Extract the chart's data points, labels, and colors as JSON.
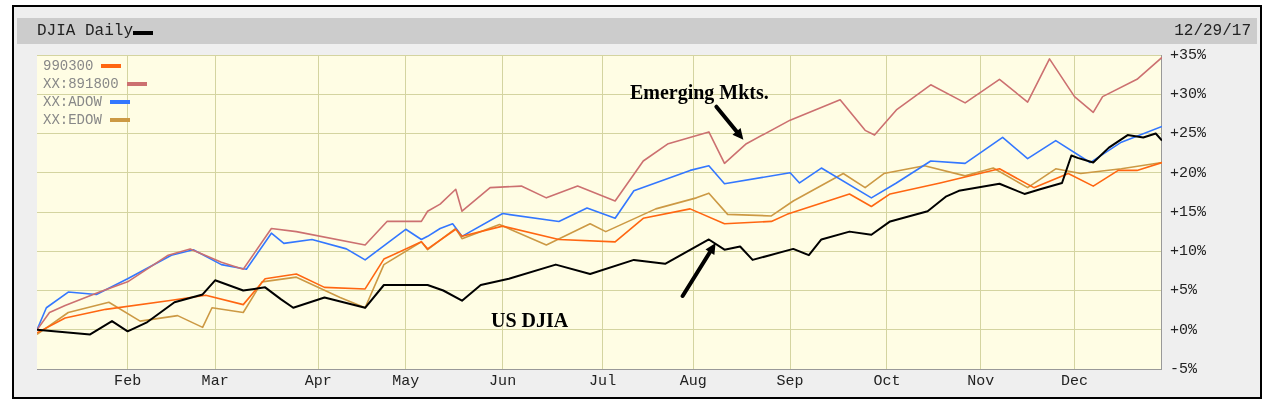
{
  "chart_data": {
    "type": "line",
    "subtitle": "12/29/17",
    "xlim": [
      "--01-03",
      "--12-29"
    ],
    "xticks": [
      {
        "value": "--02-01",
        "label": "Feb"
      },
      {
        "value": "--03-01",
        "label": "Mar"
      },
      {
        "value": "--04-03",
        "label": "Apr"
      },
      {
        "value": "--05-01",
        "label": "May"
      },
      {
        "value": "--06-01",
        "label": "Jun"
      },
      {
        "value": "--07-03",
        "label": "Jul"
      },
      {
        "value": "--08-01",
        "label": "Aug"
      },
      {
        "value": "--09-01",
        "label": "Sep"
      },
      {
        "value": "--10-02",
        "label": "Oct"
      },
      {
        "value": "--11-01",
        "label": "Nov"
      },
      {
        "value": "--12-01",
        "label": "Dec"
      }
    ],
    "ylim": [
      -5,
      35
    ],
    "yticks": [
      {
        "value": -5,
        "label": "-5%"
      },
      {
        "value": 0,
        "label": "+0%"
      },
      {
        "value": 5,
        "label": "+5%"
      },
      {
        "value": 10,
        "label": "+10%"
      },
      {
        "value": 15,
        "label": "+15%"
      },
      {
        "value": 20,
        "label": "+20%"
      },
      {
        "value": 25,
        "label": "+25%"
      },
      {
        "value": 30,
        "label": "+30%"
      },
      {
        "value": 35,
        "label": "+35%"
      }
    ],
    "grid": true,
    "legend": "top left",
    "annotations": [
      {
        "text": "Emerging Mkts.",
        "x": "--08-18",
        "y": 23.7
      },
      "US DJIA"
    ],
    "series": [
      {
        "name": "DJIA Daily",
        "color": "#000000",
        "x": [
          "--01-03",
          "--01-20",
          "--01-27",
          "--02-01",
          "--02-07",
          "--02-16",
          "--02-25",
          "--03-01",
          "--03-10",
          "--03-17",
          "--03-22",
          "--03-26",
          "--04-05",
          "--04-18",
          "--04-24",
          "--05-08",
          "--05-13",
          "--05-19",
          "--05-25",
          "--06-03",
          "--06-18",
          "--06-29",
          "--07-13",
          "--07-23",
          "--08-06",
          "--08-11",
          "--08-16",
          "--08-20",
          "--09-02",
          "--09-07",
          "--09-11",
          "--09-20",
          "--09-27",
          "--10-03",
          "--10-15",
          "--10-21",
          "--10-25",
          "--11-07",
          "--11-15",
          "--11-20",
          "--11-27",
          "--11-30",
          "--12-02",
          "--12-07",
          "--12-12",
          "--12-18",
          "--12-23",
          "--12-27",
          "--12-29"
        ],
        "values": [
          0,
          -0.6,
          1.1,
          -0.2,
          0.9,
          3.5,
          4.5,
          6.3,
          5.0,
          5.4,
          3.9,
          2.8,
          4.1,
          2.8,
          5.7,
          5.7,
          5.0,
          3.7,
          5.7,
          6.5,
          8.3,
          7.1,
          8.9,
          8.4,
          11.5,
          10.2,
          10.6,
          8.9,
          10.3,
          9.5,
          11.5,
          12.5,
          12.1,
          13.8,
          15.1,
          17.0,
          17.7,
          18.6,
          17.3,
          17.9,
          18.7,
          22.2,
          21.9,
          21.3,
          23.2,
          24.8,
          24.5,
          25.0,
          24.1
        ]
      },
      {
        "name": "990300",
        "color": "#ff6611",
        "x": [
          "--01-03",
          "--01-12",
          "--01-25",
          "--02-14",
          "--02-26",
          "--03-10",
          "--03-17",
          "--03-27",
          "--04-05",
          "--04-18",
          "--04-24",
          "--05-06",
          "--05-08",
          "--05-17",
          "--05-19",
          "--06-01",
          "--06-19",
          "--07-07",
          "--07-16",
          "--07-31",
          "--08-11",
          "--08-26",
          "--08-31",
          "--09-20",
          "--09-27",
          "--10-03",
          "--10-19",
          "--11-07",
          "--11-18",
          "--11-29",
          "--12-07",
          "--12-15",
          "--12-21",
          "--12-29"
        ],
        "values": [
          -0.4,
          1.5,
          2.6,
          3.7,
          4.4,
          3.2,
          6.5,
          7.1,
          5.4,
          5.2,
          9.0,
          11.2,
          10.3,
          12.8,
          11.9,
          13.2,
          11.5,
          11.2,
          14.2,
          15.4,
          13.5,
          13.8,
          14.7,
          17.3,
          15.7,
          17.3,
          18.7,
          20.5,
          18.1,
          19.9,
          18.3,
          20.3,
          20.3,
          21.3
        ]
      },
      {
        "name": "XX:891800",
        "color": "#cc7070",
        "x": [
          "--01-03",
          "--01-07",
          "--01-12",
          "--01-23",
          "--02-01",
          "--02-14",
          "--02-21",
          "--03-03",
          "--03-10",
          "--03-19",
          "--03-27",
          "--04-18",
          "--04-25",
          "--05-06",
          "--05-08",
          "--05-12",
          "--05-17",
          "--05-19",
          "--05-28",
          "--06-07",
          "--06-15",
          "--06-25",
          "--07-07",
          "--07-16",
          "--07-24",
          "--08-06",
          "--08-11",
          "--08-18",
          "--09-01",
          "--09-17",
          "--09-25",
          "--09-28",
          "--10-05",
          "--10-16",
          "--10-27",
          "--11-07",
          "--11-16",
          "--11-23",
          "--12-01",
          "--12-07",
          "--12-10",
          "--12-21",
          "--12-29"
        ],
        "values": [
          0,
          2.2,
          3.1,
          4.8,
          6.1,
          9.5,
          10.3,
          8.6,
          7.7,
          12.9,
          12.5,
          10.8,
          13.8,
          13.8,
          15.1,
          16.0,
          17.9,
          15.1,
          18.1,
          18.3,
          16.8,
          18.3,
          16.4,
          21.5,
          23.7,
          25.2,
          21.2,
          23.7,
          26.7,
          29.3,
          25.4,
          24.8,
          28.0,
          31.2,
          28.9,
          31.9,
          29.0,
          34.5,
          29.7,
          27.7,
          29.7,
          31.9,
          34.7
        ]
      },
      {
        "name": "XX:ADOW",
        "color": "#3377ff",
        "x": [
          "--01-03",
          "--01-06",
          "--01-13",
          "--01-22",
          "--02-01",
          "--02-15",
          "--02-22",
          "--03-03",
          "--03-11",
          "--03-19",
          "--03-23",
          "--04-01",
          "--04-12",
          "--04-18",
          "--05-01",
          "--05-06",
          "--05-08",
          "--05-12",
          "--05-16",
          "--05-19",
          "--06-01",
          "--06-19",
          "--06-28",
          "--07-07",
          "--07-13",
          "--07-31",
          "--08-06",
          "--08-11",
          "--09-01",
          "--09-04",
          "--09-11",
          "--09-27",
          "--10-05",
          "--10-16",
          "--10-27",
          "--11-08",
          "--11-16",
          "--11-25",
          "--12-06",
          "--12-16",
          "--12-29"
        ],
        "values": [
          0,
          2.8,
          4.8,
          4.5,
          6.5,
          9.5,
          10.2,
          8.3,
          7.7,
          12.3,
          11.0,
          11.5,
          10.3,
          8.9,
          12.8,
          11.5,
          11.9,
          12.9,
          13.5,
          11.9,
          14.8,
          13.8,
          15.5,
          14.2,
          17.7,
          20.3,
          20.9,
          18.6,
          20.0,
          18.7,
          20.6,
          16.8,
          18.7,
          21.5,
          21.2,
          24.5,
          21.8,
          24.1,
          21.3,
          23.9,
          25.9
        ]
      },
      {
        "name": "XX:EDOW",
        "color": "#cc9944",
        "x": [
          "--01-03",
          "--01-13",
          "--01-26",
          "--02-05",
          "--02-17",
          "--02-25",
          "--02-28",
          "--03-10",
          "--03-16",
          "--03-27",
          "--04-10",
          "--04-18",
          "--04-24",
          "--05-06",
          "--05-08",
          "--05-17",
          "--05-19",
          "--05-31",
          "--06-15",
          "--06-29",
          "--07-04",
          "--07-20",
          "--08-02",
          "--08-06",
          "--08-12",
          "--08-26",
          "--09-02",
          "--09-18",
          "--09-25",
          "--10-01",
          "--10-14",
          "--10-27",
          "--11-05",
          "--11-16",
          "--11-25",
          "--12-03",
          "--12-16",
          "--12-29"
        ],
        "values": [
          -0.6,
          2.2,
          3.5,
          1.1,
          1.8,
          0.3,
          2.8,
          2.2,
          6.1,
          6.7,
          4.1,
          2.8,
          8.3,
          11.2,
          10.2,
          12.9,
          11.6,
          13.4,
          10.8,
          13.5,
          12.5,
          15.4,
          16.8,
          17.4,
          14.7,
          14.5,
          16.4,
          19.9,
          18.1,
          19.9,
          20.9,
          19.6,
          20.6,
          18.1,
          20.5,
          19.9,
          20.5,
          21.3
        ]
      }
    ]
  }
}
